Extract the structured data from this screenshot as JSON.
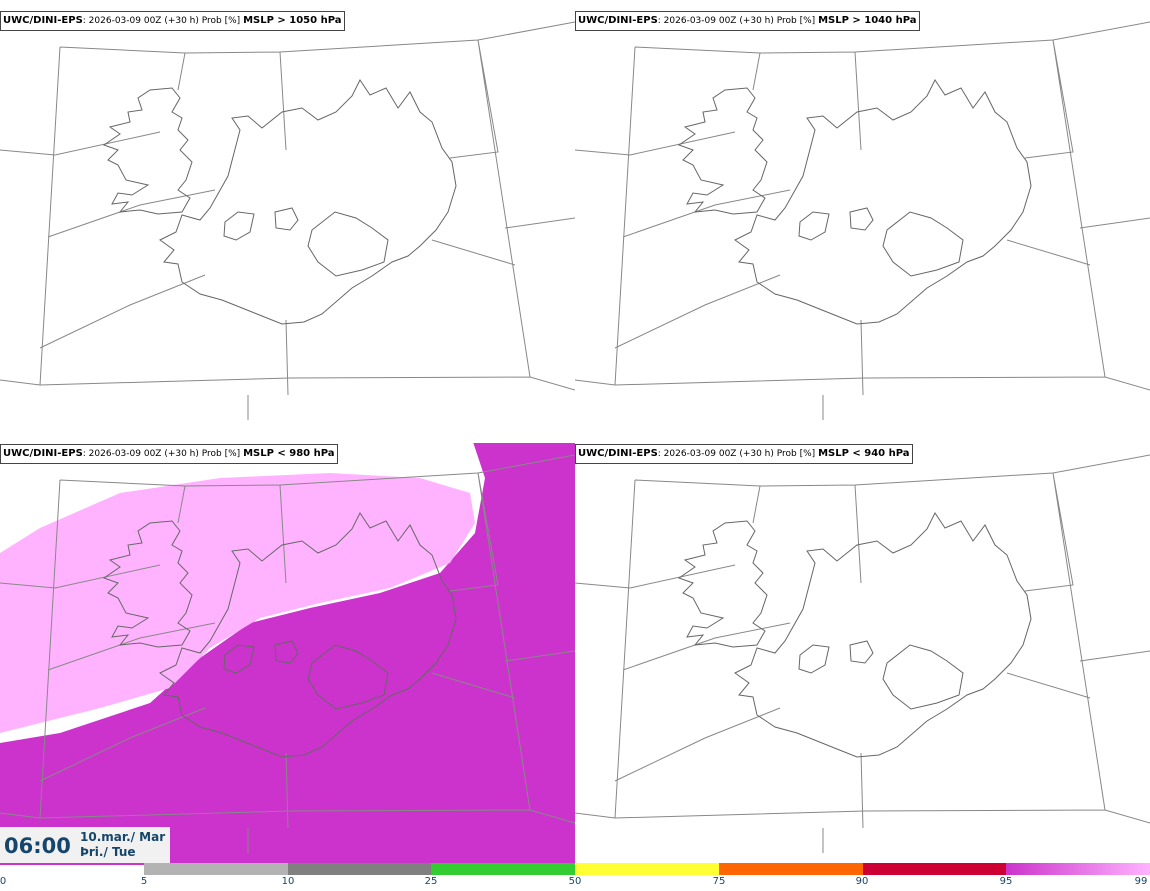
{
  "panels": [
    {
      "source": "UWC/DINI-EPS",
      "run": "2026-03-09 00Z (+30 h) Prob [%]",
      "variable": "MSLP > 1050 hPa"
    },
    {
      "source": "UWC/DINI-EPS",
      "run": "2026-03-09 00Z (+30 h) Prob [%]",
      "variable": "MSLP > 1040 hPa"
    },
    {
      "source": "UWC/DINI-EPS",
      "run": "2026-03-09 00Z (+30 h) Prob [%]",
      "variable": "MSLP < 980 hPa"
    },
    {
      "source": "UWC/DINI-EPS",
      "run": "2026-03-09 00Z (+30 h) Prob [%]",
      "variable": "MSLP < 940 hPa"
    }
  ],
  "valid_time": {
    "time": "06:00",
    "date": "10.mar./ Mar",
    "weekday": "Þri./ Tue"
  },
  "colorbar": {
    "ticks": [
      "0",
      "5",
      "10",
      "25",
      "50",
      "75",
      "90",
      "95",
      "99"
    ],
    "colors": [
      "#b3b3b3",
      "#808080",
      "#33cc33",
      "#ffff33",
      "#ff6600",
      "#cc0033",
      "#cc33cc",
      "#ffb3ff"
    ]
  }
}
